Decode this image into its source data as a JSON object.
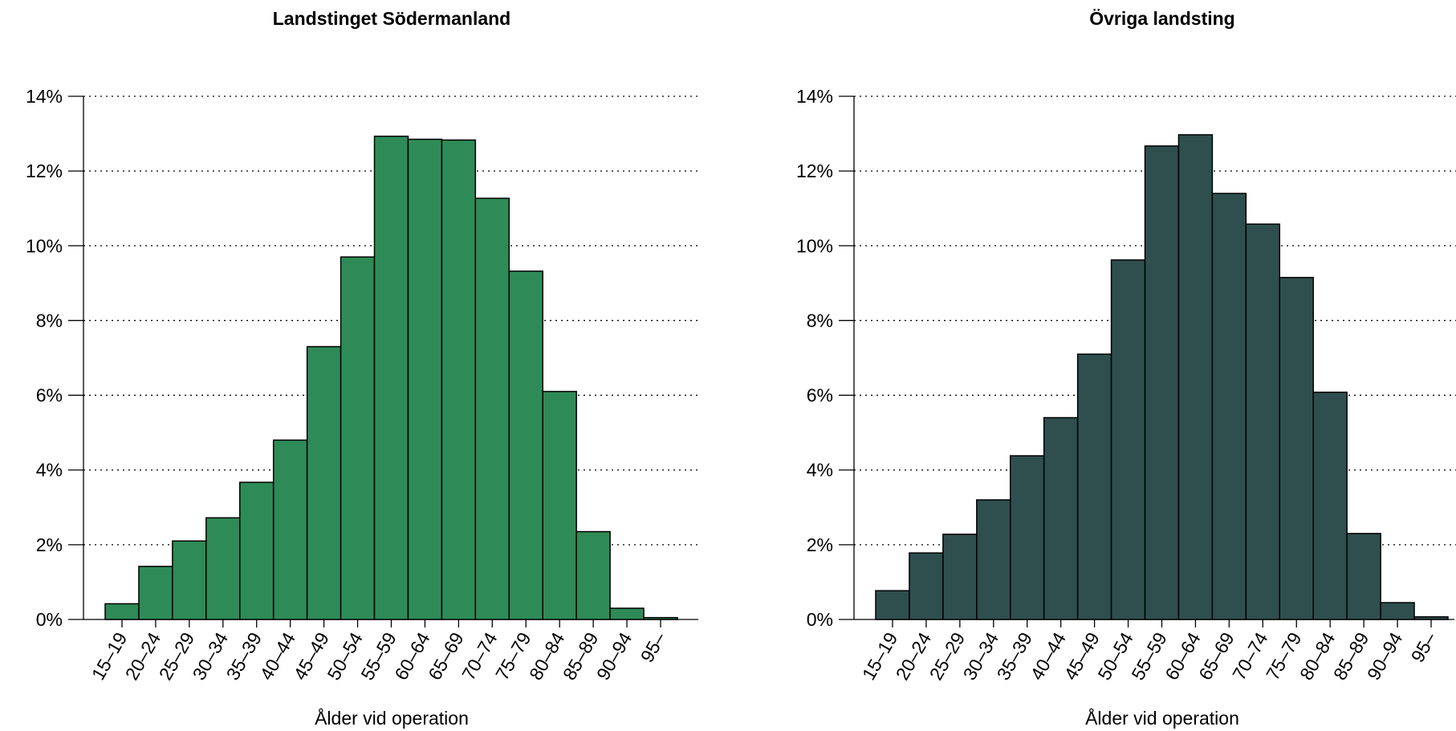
{
  "chart_data": [
    {
      "type": "bar",
      "title": "Landstinget Södermanland",
      "xlabel": "Ålder vid operation",
      "ylabel": "",
      "ylim": [
        0,
        14
      ],
      "y_ticks": [
        "0%",
        "2%",
        "4%",
        "6%",
        "8%",
        "10%",
        "12%",
        "14%"
      ],
      "grid": "horizontal dotted",
      "color": "#2e8b57",
      "categories": [
        "15–19",
        "20–24",
        "25–29",
        "30–34",
        "35–39",
        "40–44",
        "45–49",
        "50–54",
        "55–59",
        "60–64",
        "65–69",
        "70–74",
        "75–79",
        "80–84",
        "85–89",
        "90–94",
        "95–"
      ],
      "values": [
        0.42,
        1.42,
        2.1,
        2.72,
        3.67,
        4.8,
        7.3,
        9.7,
        12.93,
        12.85,
        12.83,
        11.27,
        9.32,
        6.1,
        2.35,
        0.3,
        0.05
      ]
    },
    {
      "type": "bar",
      "title": "Övriga landsting",
      "xlabel": "Ålder vid operation",
      "ylabel": "",
      "ylim": [
        0,
        14
      ],
      "y_ticks": [
        "0%",
        "2%",
        "4%",
        "6%",
        "8%",
        "10%",
        "12%",
        "14%"
      ],
      "grid": "horizontal dotted",
      "color": "#2f4f4f",
      "categories": [
        "15–19",
        "20–24",
        "25–29",
        "30–34",
        "35–39",
        "40–44",
        "45–49",
        "50–54",
        "55–59",
        "60–64",
        "65–69",
        "70–74",
        "75–79",
        "80–84",
        "85–89",
        "90–94",
        "95–"
      ],
      "values": [
        0.77,
        1.78,
        2.28,
        3.2,
        4.38,
        5.4,
        7.1,
        9.62,
        12.67,
        12.97,
        11.4,
        10.58,
        9.15,
        6.08,
        2.3,
        0.45,
        0.07
      ]
    }
  ]
}
